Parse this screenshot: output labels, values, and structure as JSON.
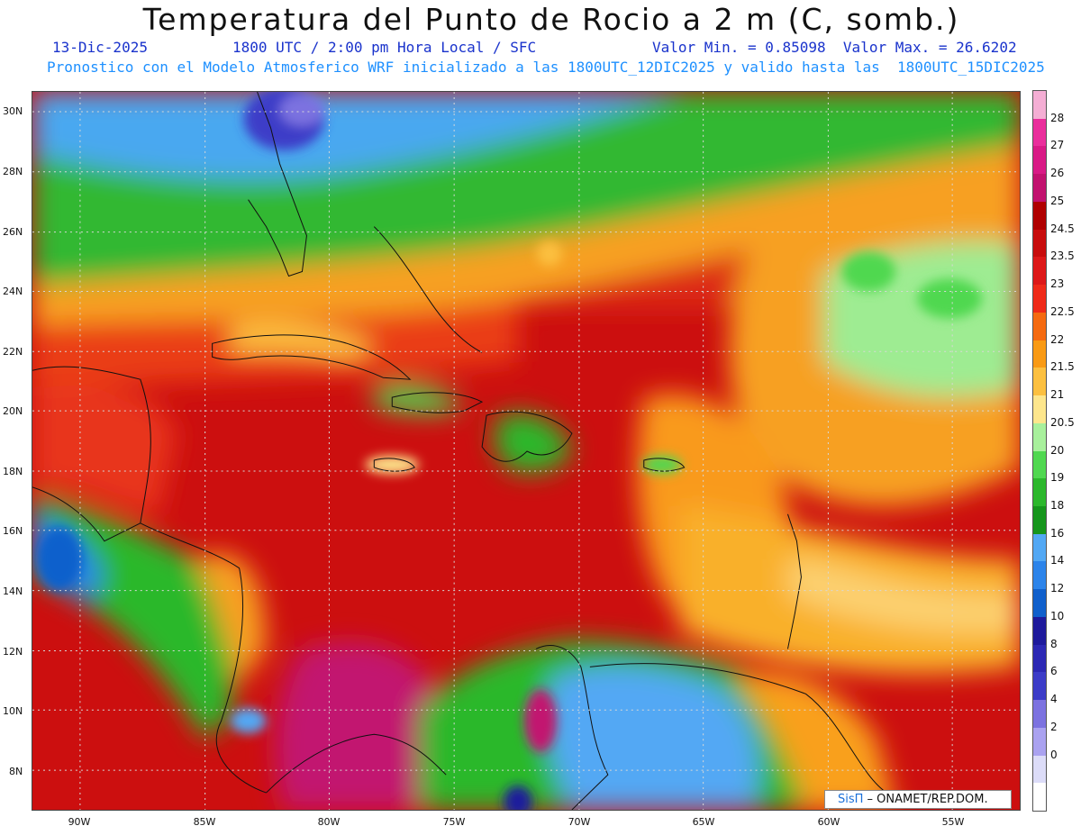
{
  "header": {
    "title": "Temperatura del Punto de Rocio a 2 m (C, somb.)",
    "date": "13-Dic-2025",
    "time": "1800 UTC / 2:00 pm Hora Local / SFC",
    "minmax": "Valor Min. = 0.85098  Valor Max. = 26.6202",
    "description": "Pronostico con el Modelo Atmosferico WRF inicializado a las 1800UTC_12DIC2025 y valido hasta las  1800UTC_15DIC2025"
  },
  "axes": {
    "lat_labels": [
      "30N",
      "28N",
      "26N",
      "24N",
      "22N",
      "20N",
      "18N",
      "16N",
      "14N",
      "12N",
      "10N",
      "8N"
    ],
    "lon_labels": [
      "90W",
      "85W",
      "80W",
      "75W",
      "70W",
      "65W",
      "60W",
      "55W"
    ]
  },
  "colorbar": {
    "labels": [
      "28",
      "27",
      "26",
      "25",
      "24.5",
      "23.5",
      "23",
      "22.5",
      "22",
      "21.5",
      "21",
      "20.5",
      "20",
      "19",
      "18",
      "16",
      "14",
      "12",
      "10",
      "8",
      "6",
      "4",
      "2",
      "0"
    ],
    "colors": [
      "#f4aed4",
      "#ea2e9c",
      "#d91a86",
      "#c2126f",
      "#b00000",
      "#c80c0c",
      "#dd1818",
      "#ef2a18",
      "#f56a10",
      "#f99a14",
      "#fcc040",
      "#fde68c",
      "#a8f09c",
      "#50d850",
      "#2cb82c",
      "#16961c",
      "#52a8f4",
      "#2c84ea",
      "#1060cc",
      "#1e1a9c",
      "#2c28b4",
      "#3c3cc8",
      "#7c72e0",
      "#aaa2f0",
      "#dcdcf8",
      "#ffffff"
    ]
  },
  "credit": {
    "logo": "SisΠ",
    "text": " – ONAMET/REP.DOM."
  }
}
